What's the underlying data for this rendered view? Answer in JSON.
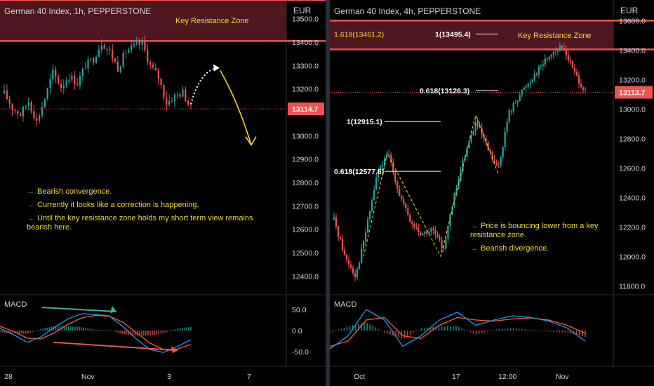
{
  "left": {
    "symbol": "German 40 Index, 1h, PEPPERSTONE",
    "currency": "EUR",
    "zone_label": "Key Resistance Zone",
    "price_label": "13114.7",
    "notes": [
      "Bearish convergence.",
      "Currently it looks like a correction is happening.",
      "Until the key resistance zone holds my short term view remains bearish here."
    ],
    "macd_label": "MACD",
    "x_ticks": [
      "28",
      "Nov",
      "3",
      "7"
    ],
    "colors": {
      "up": "#26a69a",
      "down": "#ef5350",
      "zone": "#ef5350",
      "note": "#f0d73a",
      "forecast": "#f0d73a"
    }
  },
  "right": {
    "symbol": "German 40 Index, 4h, PEPPERSTONE",
    "currency": "EUR",
    "zone_label": "Key Resistance Zone",
    "price_label": "13113.7",
    "fib_labels": [
      "1.618(13461.2)",
      "1(13495.4)",
      "0.618(13126.3)",
      "1(12915.1)",
      "0.618(12577.6)"
    ],
    "notes": [
      "Price is bouncing lower from a key resistance zone.",
      "Bearish divergence."
    ],
    "macd_label": "MACD",
    "x_ticks": [
      "Oct",
      "17",
      "12:00",
      "Nov"
    ]
  },
  "chart_data": [
    {
      "type": "candlestick",
      "title": "German 40 Index, 1h, PEPPERSTONE",
      "ylabel": "EUR",
      "ylim": [
        12320,
        13580
      ],
      "y_ticks": [
        12400,
        12500,
        12600,
        12700,
        12800,
        12900,
        13000,
        13100,
        13200,
        13300,
        13400,
        13500
      ],
      "x_ticks": [
        "28",
        "Nov",
        "3",
        "7"
      ],
      "resistance_zone": [
        13405,
        13580
      ],
      "last_price": 13114.7,
      "close_path": [
        13180,
        13120,
        13090,
        13150,
        13060,
        13160,
        13270,
        13210,
        13255,
        13225,
        13300,
        13330,
        13400,
        13360,
        13290,
        13360,
        13380,
        13395,
        13300,
        13250,
        13140,
        13170,
        13185,
        13115
      ],
      "forecast": [
        13135,
        13290,
        12960
      ],
      "macd": {
        "ylim": [
          -75,
          75
        ],
        "y_ticks": [
          50,
          0,
          -50
        ],
        "line": [
          5,
          -10,
          -28,
          -15,
          8,
          28,
          40,
          38,
          35,
          10,
          -20,
          -45,
          -52,
          -38,
          -22
        ],
        "signal": [
          10,
          -2,
          -18,
          -20,
          -5,
          15,
          30,
          36,
          34,
          20,
          -5,
          -30,
          -45,
          -44,
          -33
        ],
        "divergence_line": [
          [
            0.28,
            -28
          ],
          [
            0.93,
            -47
          ]
        ],
        "peak_line": [
          [
            0.22,
            55
          ],
          [
            0.61,
            45
          ]
        ]
      }
    },
    {
      "type": "candlestick",
      "title": "German 40 Index, 4h, PEPPERSTONE",
      "ylabel": "EUR",
      "ylim": [
        11740,
        13740
      ],
      "y_ticks": [
        11800,
        12000,
        12200,
        12400,
        12600,
        12800,
        13000,
        13200,
        13400,
        13600
      ],
      "x_ticks": [
        "Oct",
        "17",
        "12:00",
        "Nov"
      ],
      "resistance_zone": [
        13405,
        13600
      ],
      "last_price": 13113.7,
      "close_path": [
        12250,
        12000,
        11870,
        12200,
        12580,
        12690,
        12420,
        12230,
        12150,
        12180,
        12050,
        12400,
        12700,
        12910,
        12740,
        12580,
        12970,
        13100,
        13200,
        13300,
        13390,
        13420,
        13250,
        13115
      ],
      "fib_levels": [
        {
          "label": "1.618(13461.2)",
          "value": 13461.2
        },
        {
          "label": "1(13495.4)",
          "value": 13495.4
        },
        {
          "label": "0.618(13126.3)",
          "value": 13126.3
        },
        {
          "label": "1(12915.1)",
          "value": 12915.1
        },
        {
          "label": "0.618(12577.6)",
          "value": 12577.6
        }
      ],
      "macd": {
        "ylim": [
          -60,
          60
        ],
        "line": [
          -35,
          -10,
          40,
          20,
          -30,
          -10,
          20,
          35,
          10,
          20,
          28,
          25,
          18,
          5,
          -20
        ],
        "signal": [
          -30,
          -20,
          20,
          25,
          -10,
          -15,
          10,
          25,
          20,
          18,
          22,
          24,
          20,
          10,
          -5
        ]
      }
    }
  ]
}
